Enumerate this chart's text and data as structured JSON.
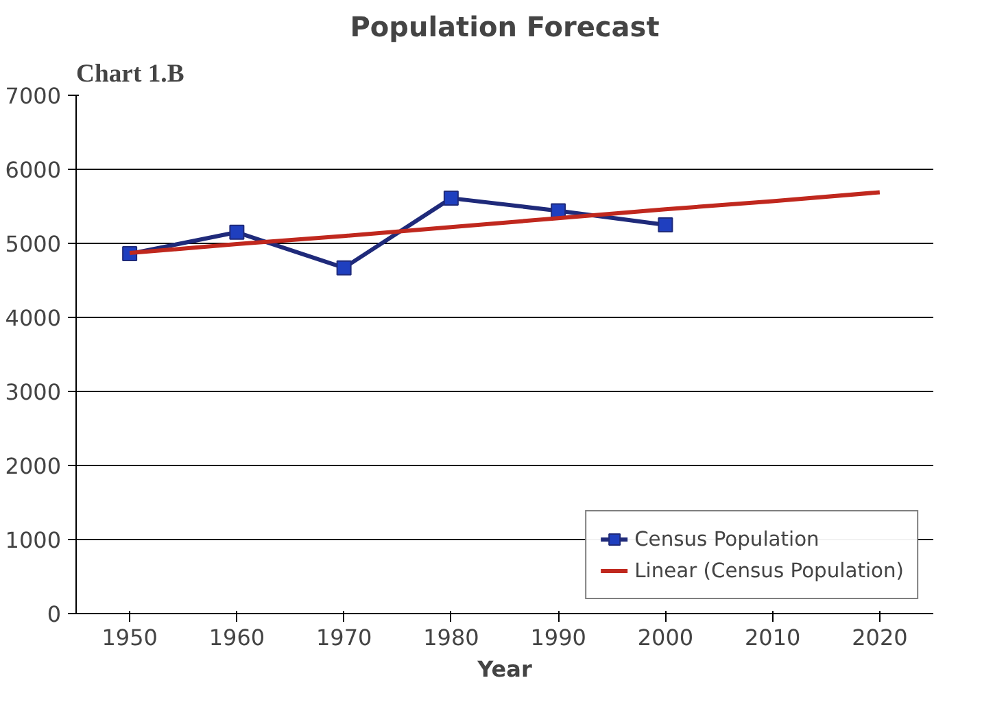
{
  "chart_data": {
    "type": "line",
    "title": "Population Forecast",
    "xlabel": "Year",
    "categories": [
      "1950",
      "1960",
      "1970",
      "1980",
      "1990",
      "2000",
      "2010",
      "2020"
    ],
    "series": [
      {
        "name": "Census Population",
        "color": "#1f2a7a",
        "marker": "square",
        "values": [
          4860,
          5150,
          4670,
          5610,
          5440,
          5250,
          null,
          null
        ]
      },
      {
        "name": "Linear (Census Population)",
        "color": "#c0281e",
        "marker": "none",
        "values": [
          4870,
          4990,
          5100,
          5220,
          5340,
          5460,
          5570,
          5690
        ]
      }
    ],
    "ylim": [
      0,
      7000
    ],
    "yticks": [
      0,
      1000,
      2000,
      3000,
      4000,
      5000,
      6000,
      7000
    ],
    "grid": "y",
    "legend": "bottom right",
    "line_style": "solid",
    "annotations": [
      "Chart 1.B"
    ]
  }
}
